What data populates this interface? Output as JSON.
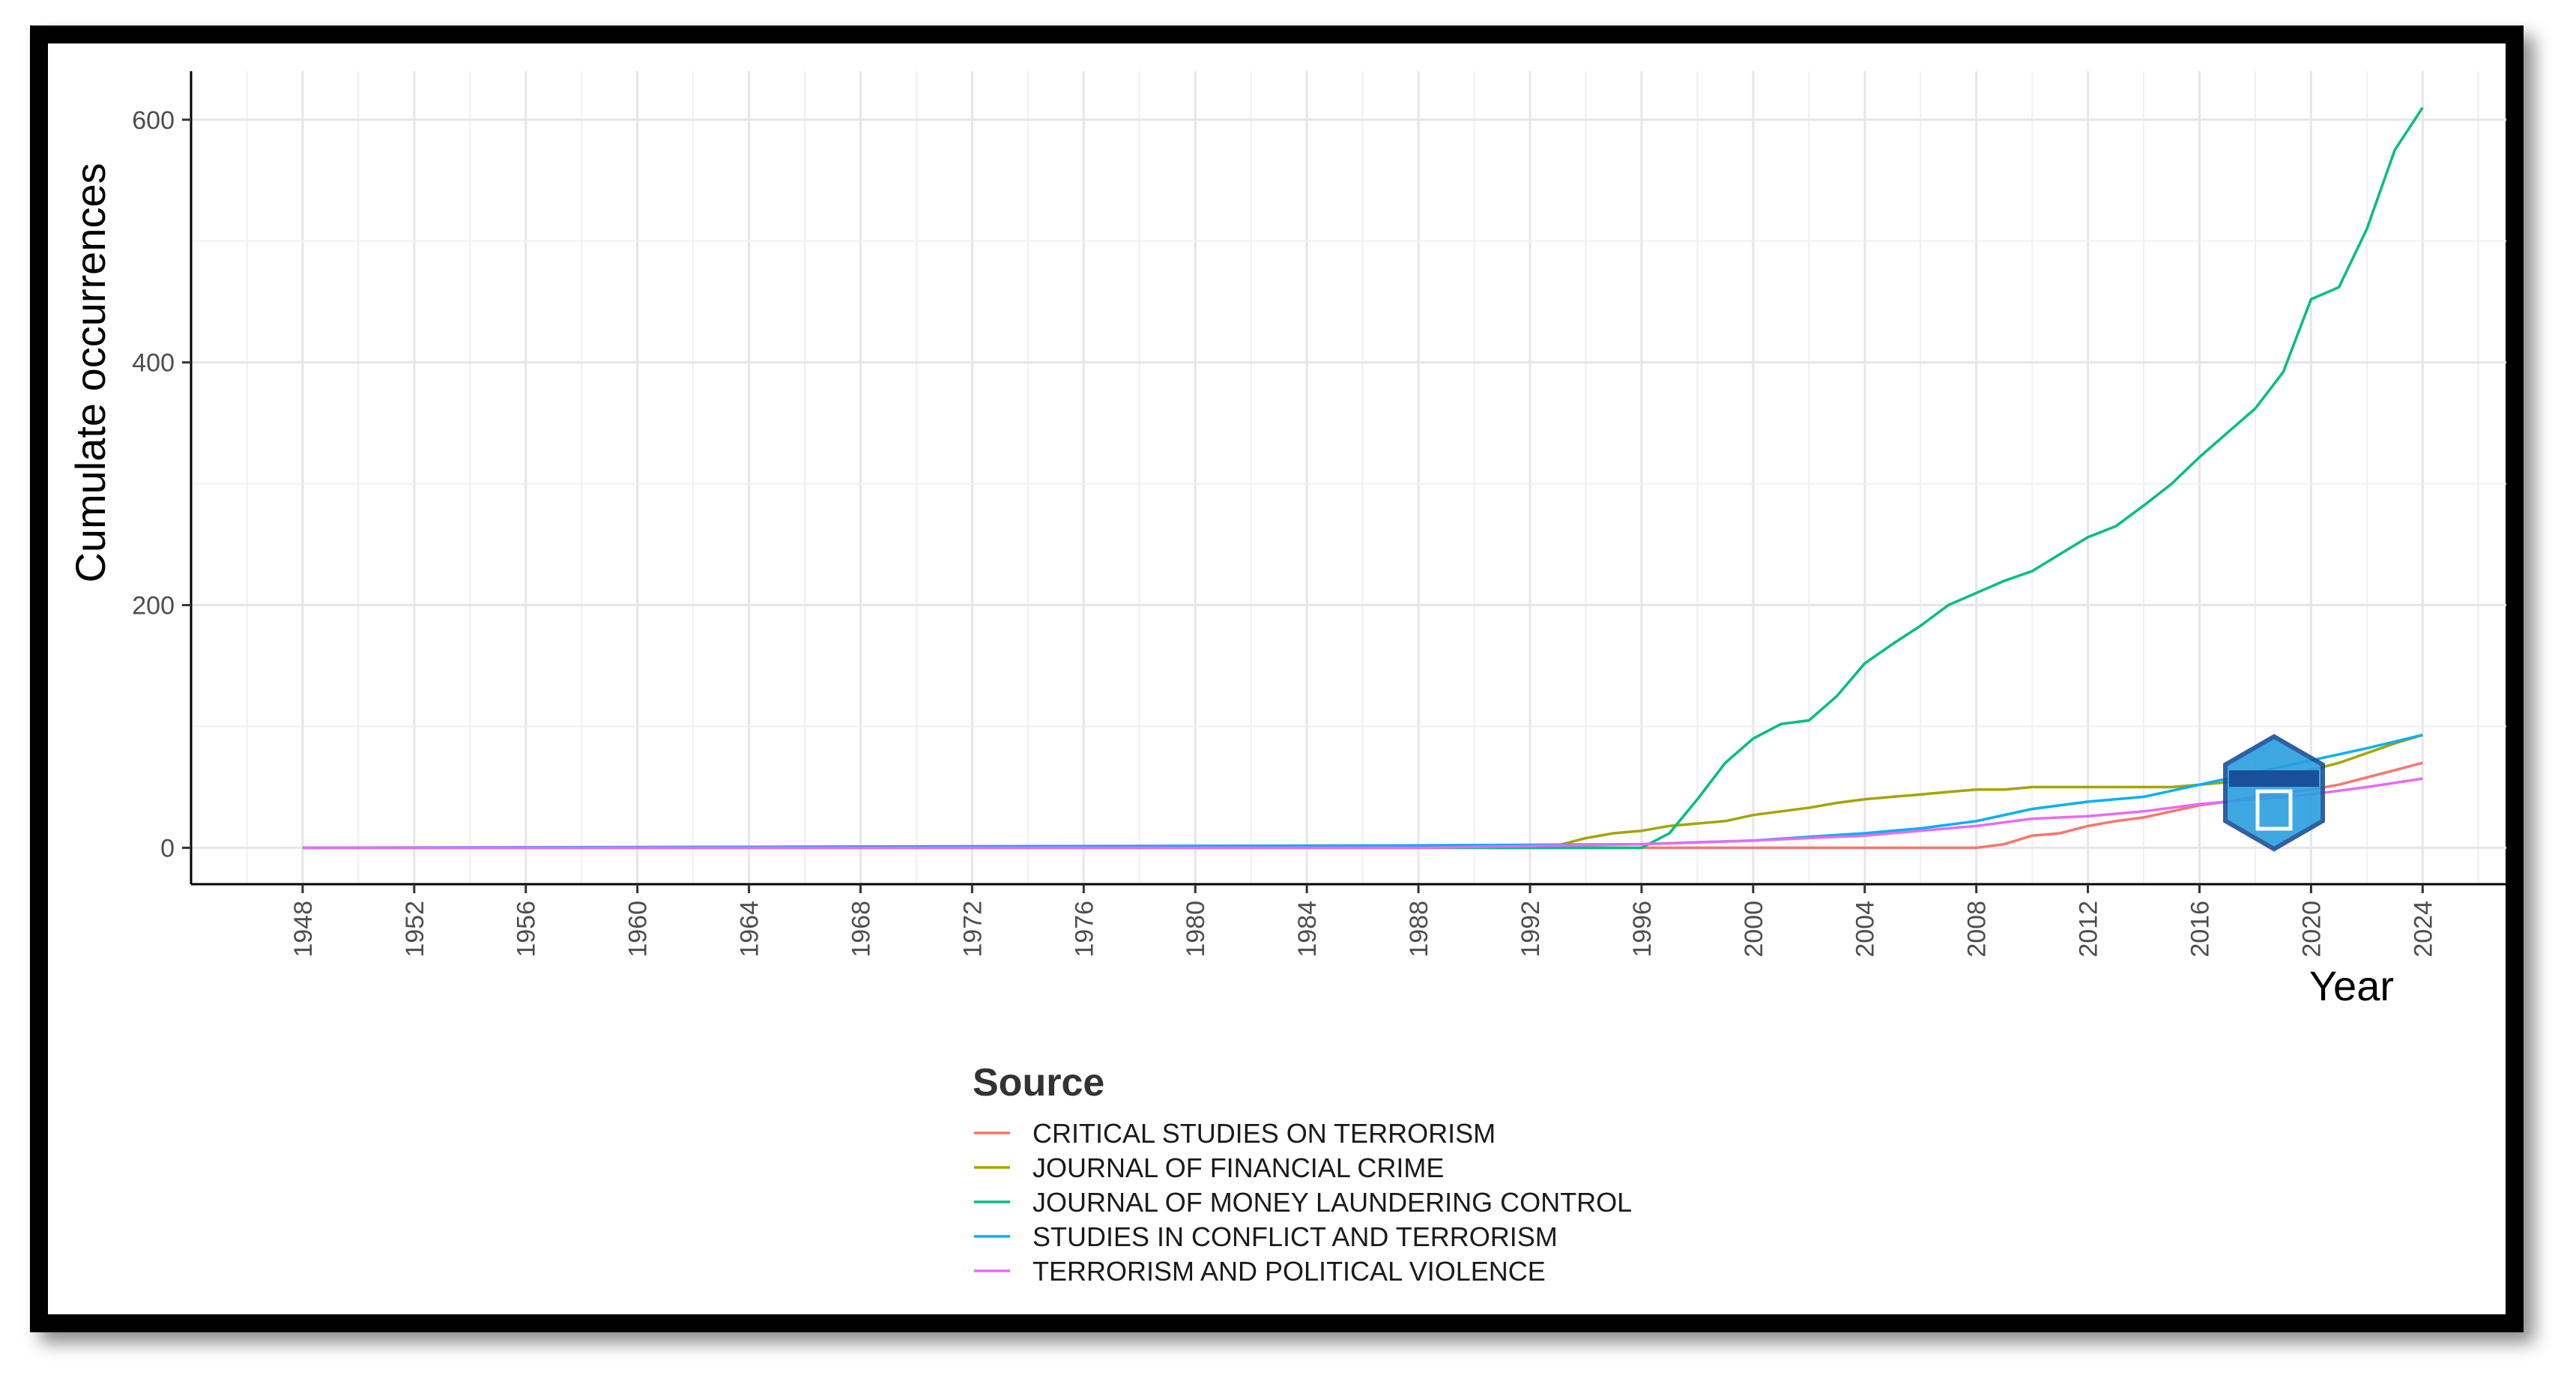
{
  "chart_data": {
    "type": "line",
    "title": "",
    "xlabel": "Year",
    "ylabel": "Cumulate occurrences",
    "xlim": [
      1944,
      2027
    ],
    "ylim": [
      -30,
      640
    ],
    "x_ticks": [
      1948,
      1952,
      1956,
      1960,
      1964,
      1968,
      1972,
      1976,
      1980,
      1984,
      1988,
      1992,
      1996,
      2000,
      2004,
      2008,
      2012,
      2016,
      2020,
      2024
    ],
    "y_ticks": [
      0,
      200,
      400,
      600
    ],
    "grid": true,
    "legend": {
      "title": "Source",
      "placement": "bottom"
    },
    "series": [
      {
        "name": "CRITICAL STUDIES ON TERRORISM",
        "color": "#F8766D",
        "x": [
          1948,
          1988,
          1996,
          2000,
          2004,
          2008,
          2009,
          2010,
          2011,
          2012,
          2013,
          2014,
          2015,
          2016,
          2017,
          2018,
          2019,
          2020,
          2021,
          2022,
          2023,
          2024
        ],
        "y": [
          0,
          0,
          0,
          0,
          0,
          0,
          3,
          10,
          12,
          18,
          22,
          25,
          30,
          35,
          38,
          42,
          45,
          48,
          52,
          58,
          64,
          70
        ]
      },
      {
        "name": "JOURNAL OF FINANCIAL CRIME",
        "color": "#A3A500",
        "x": [
          1948,
          1988,
          1993,
          1994,
          1995,
          1996,
          1997,
          1998,
          1999,
          2000,
          2001,
          2002,
          2003,
          2004,
          2005,
          2006,
          2007,
          2008,
          2009,
          2010,
          2011,
          2012,
          2013,
          2014,
          2015,
          2016,
          2017,
          2018,
          2019,
          2020,
          2021,
          2022,
          2023,
          2024
        ],
        "y": [
          0,
          0,
          2,
          8,
          12,
          14,
          18,
          20,
          22,
          27,
          30,
          33,
          37,
          40,
          42,
          44,
          46,
          48,
          48,
          50,
          50,
          50,
          50,
          50,
          50,
          52,
          54,
          56,
          60,
          64,
          70,
          78,
          86,
          93
        ]
      },
      {
        "name": "JOURNAL OF MONEY LAUNDERING CONTROL",
        "color": "#00BF7D",
        "x": [
          1948,
          1996,
          1997,
          1998,
          1999,
          2000,
          2001,
          2002,
          2003,
          2004,
          2005,
          2006,
          2007,
          2008,
          2009,
          2010,
          2011,
          2012,
          2013,
          2014,
          2015,
          2016,
          2017,
          2018,
          2019,
          2020,
          2021,
          2022,
          2023,
          2024
        ],
        "y": [
          0,
          0,
          12,
          40,
          70,
          90,
          102,
          105,
          125,
          152,
          168,
          183,
          200,
          210,
          220,
          228,
          242,
          256,
          265,
          282,
          300,
          322,
          342,
          362,
          392,
          452,
          462,
          510,
          575,
          610
        ]
      },
      {
        "name": "STUDIES IN CONFLICT AND TERRORISM",
        "color": "#00B0F6",
        "x": [
          1948,
          1988,
          1996,
          2000,
          2002,
          2004,
          2006,
          2008,
          2010,
          2012,
          2014,
          2016,
          2018,
          2020,
          2022,
          2024
        ],
        "y": [
          0,
          2,
          3,
          6,
          9,
          12,
          16,
          22,
          32,
          38,
          42,
          52,
          62,
          72,
          82,
          93
        ]
      },
      {
        "name": "TERRORISM AND POLITICAL VIOLENCE",
        "color": "#E76BF3",
        "x": [
          1948,
          1988,
          1996,
          2000,
          2004,
          2008,
          2010,
          2012,
          2014,
          2016,
          2018,
          2020,
          2022,
          2024
        ],
        "y": [
          0,
          0,
          3,
          6,
          10,
          18,
          24,
          26,
          30,
          36,
          40,
          44,
          50,
          57
        ]
      }
    ]
  }
}
